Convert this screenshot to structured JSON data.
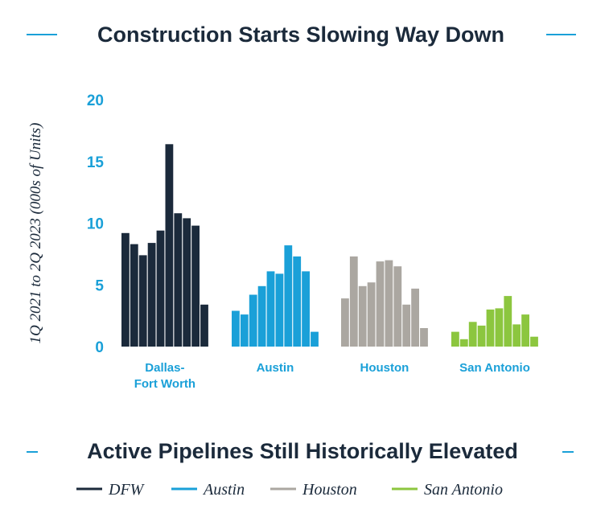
{
  "titles": {
    "top": "Construction Starts Slowing Way Down",
    "bottom": "Active Pipelines Still Historically Elevated"
  },
  "colors": {
    "accent": "#1aa0d8",
    "title": "#1b2a3b"
  },
  "chart_data": {
    "type": "bar",
    "title": "Construction Starts Slowing Way Down",
    "ylabel": "1Q 2021 to 2Q 2023 (000s of Units)",
    "xlabel": "",
    "ylim": [
      0,
      20
    ],
    "yticks": [
      "0",
      "5",
      "10",
      "15",
      "20"
    ],
    "grid": false,
    "legend_position": "bottom",
    "series": [
      {
        "name": "DFW",
        "category": [
          "Dallas-",
          "Fort Worth"
        ],
        "color": "#1b2a3b",
        "values": [
          9.2,
          8.3,
          7.4,
          8.4,
          9.4,
          16.4,
          10.8,
          10.4,
          9.8,
          3.4
        ]
      },
      {
        "name": "Austin",
        "category": [
          "Austin"
        ],
        "color": "#1aa0d8",
        "values": [
          2.9,
          2.6,
          4.2,
          4.9,
          6.1,
          5.9,
          8.2,
          7.3,
          6.1,
          1.2
        ]
      },
      {
        "name": "Houston",
        "category": [
          "Houston"
        ],
        "color": "#aba7a1",
        "values": [
          3.9,
          7.3,
          4.9,
          5.2,
          6.9,
          7.0,
          6.5,
          3.4,
          4.7,
          1.5
        ]
      },
      {
        "name": "San Antonio",
        "category": [
          "San Antonio"
        ],
        "color": "#8cc63f",
        "values": [
          1.2,
          0.6,
          2.0,
          1.7,
          3.0,
          3.1,
          4.1,
          1.8,
          2.6,
          0.8
        ]
      }
    ]
  }
}
